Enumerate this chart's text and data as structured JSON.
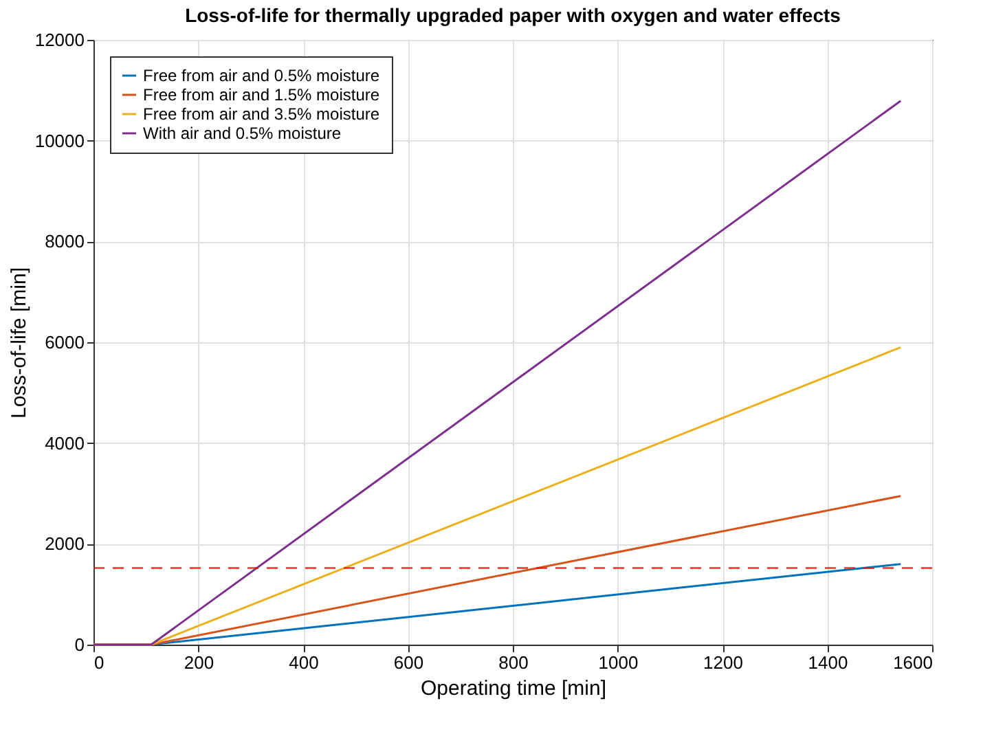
{
  "chart_data": {
    "type": "line",
    "title": "Loss-of-life for thermally upgraded paper with oxygen and water effects",
    "xlabel": "Operating time [min]",
    "ylabel": "Loss-of-life [min]",
    "x": [
      0,
      110,
      1540
    ],
    "series": [
      {
        "name": "Free from air and 0.5% moisture",
        "color": "#0072bd",
        "values": [
          0,
          0,
          1600
        ]
      },
      {
        "name": "Free from air and 1.5% moisture",
        "color": "#d95319",
        "values": [
          0,
          0,
          2950
        ]
      },
      {
        "name": "Free from air and 3.5% moisture",
        "color": "#edb120",
        "values": [
          0,
          0,
          5900
        ]
      },
      {
        "name": "With air and 0.5% moisture",
        "color": "#7e2f8e",
        "values": [
          0,
          0,
          10790
        ]
      }
    ],
    "ref_lines": [
      {
        "axis": "y",
        "value": 1520,
        "color": "#ff0000",
        "line_style": "dashed"
      }
    ],
    "xlim": [
      0,
      1600
    ],
    "xticks": [
      0,
      200,
      400,
      600,
      800,
      1000,
      1200,
      1400,
      1600
    ],
    "ylim": [
      0,
      12000
    ],
    "yticks": [
      0,
      2000,
      4000,
      6000,
      8000,
      10000,
      12000
    ],
    "grid": true,
    "legend": "top left",
    "line_style": "solid",
    "marker": "none"
  }
}
